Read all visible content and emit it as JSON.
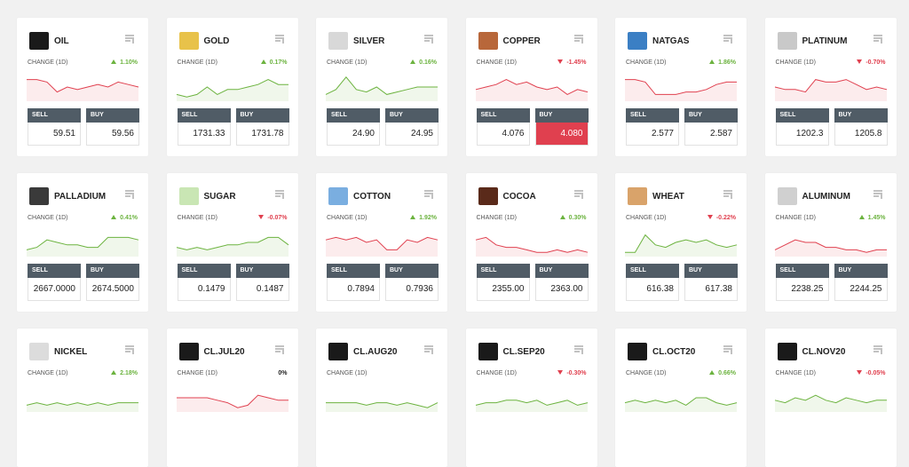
{
  "labels": {
    "change": "CHANGE (1D)",
    "sell": "SELL",
    "buy": "BUY"
  },
  "cards": [
    {
      "name": "OIL",
      "icon_color": "#1a1a1a",
      "change": "1.10%",
      "dir": "up",
      "trend": "down",
      "sell": "59.51",
      "buy": "59.56",
      "spark": [
        8,
        8,
        7,
        3,
        5,
        4,
        5,
        6,
        5,
        7,
        6,
        5
      ]
    },
    {
      "name": "GOLD",
      "icon_color": "#e8c24a",
      "change": "0.17%",
      "dir": "up",
      "trend": "up",
      "sell": "1731.33",
      "buy": "1731.78",
      "spark": [
        2,
        1,
        2,
        5,
        2,
        4,
        4,
        5,
        6,
        8,
        6,
        6
      ]
    },
    {
      "name": "SILVER",
      "icon_color": "#d8d8d8",
      "change": "0.16%",
      "dir": "up",
      "trend": "up",
      "sell": "24.90",
      "buy": "24.95",
      "spark": [
        2,
        4,
        9,
        4,
        3,
        5,
        2,
        3,
        4,
        5,
        5,
        5
      ]
    },
    {
      "name": "COPPER",
      "icon_color": "#b8673a",
      "change": "-1.45%",
      "dir": "down",
      "trend": "down",
      "sell": "4.076",
      "buy": "4.080",
      "highlight": "buy",
      "spark": [
        4,
        5,
        6,
        8,
        6,
        7,
        5,
        4,
        5,
        2,
        4,
        3
      ]
    },
    {
      "name": "NATGAS",
      "icon_color": "#3b7fc4",
      "change": "1.86%",
      "dir": "up",
      "trend": "down",
      "sell": "2.577",
      "buy": "2.587",
      "spark": [
        8,
        8,
        7,
        2,
        2,
        2,
        3,
        3,
        4,
        6,
        7,
        7
      ]
    },
    {
      "name": "PLATINUM",
      "icon_color": "#c9c9c9",
      "change": "-0.70%",
      "dir": "down",
      "trend": "down",
      "sell": "1202.3",
      "buy": "1205.8",
      "spark": [
        5,
        4,
        4,
        3,
        8,
        7,
        7,
        8,
        6,
        4,
        5,
        4
      ]
    },
    {
      "name": "PALLADIUM",
      "icon_color": "#3a3a3a",
      "change": "0.41%",
      "dir": "up",
      "trend": "up",
      "sell": "2667.0000",
      "buy": "2674.5000",
      "spark": [
        2,
        3,
        6,
        5,
        4,
        4,
        3,
        3,
        7,
        7,
        7,
        6
      ]
    },
    {
      "name": "SUGAR",
      "icon_color": "#c9e6b4",
      "change": "-0.07%",
      "dir": "down",
      "trend": "up",
      "sell": "0.1479",
      "buy": "0.1487",
      "spark": [
        3,
        2,
        3,
        2,
        3,
        4,
        4,
        5,
        5,
        7,
        7,
        4
      ]
    },
    {
      "name": "COTTON",
      "icon_color": "#7aaee0",
      "change": "1.92%",
      "dir": "up",
      "trend": "down",
      "sell": "0.7894",
      "buy": "0.7936",
      "spark": [
        6,
        7,
        6,
        7,
        5,
        6,
        2,
        2,
        6,
        5,
        7,
        6
      ]
    },
    {
      "name": "COCOA",
      "icon_color": "#5a2a1a",
      "change": "0.30%",
      "dir": "up",
      "trend": "down",
      "sell": "2355.00",
      "buy": "2363.00",
      "spark": [
        6,
        7,
        4,
        3,
        3,
        2,
        1,
        1,
        2,
        1,
        2,
        1
      ]
    },
    {
      "name": "WHEAT",
      "icon_color": "#d9a36a",
      "change": "-0.22%",
      "dir": "down",
      "trend": "up",
      "sell": "616.38",
      "buy": "617.38",
      "spark": [
        1,
        1,
        8,
        4,
        3,
        5,
        6,
        5,
        6,
        4,
        3,
        4
      ]
    },
    {
      "name": "ALUMINUM",
      "icon_color": "#d0d0d0",
      "change": "1.45%",
      "dir": "up",
      "trend": "down",
      "sell": "2238.25",
      "buy": "2244.25",
      "spark": [
        2,
        4,
        6,
        5,
        5,
        3,
        3,
        2,
        2,
        1,
        2,
        2
      ]
    },
    {
      "name": "NICKEL",
      "icon_color": "#dcdcdc",
      "change": "2.18%",
      "dir": "up",
      "trend": "up",
      "spark": [
        2,
        3,
        2,
        3,
        2,
        3,
        2,
        3,
        2,
        3,
        3,
        3
      ]
    },
    {
      "name": "CL.JUL20",
      "icon_color": "#1a1a1a",
      "change": "0%",
      "dir": "flat",
      "trend": "down",
      "spark": [
        5,
        5,
        5,
        5,
        4,
        3,
        1,
        2,
        6,
        5,
        4,
        4
      ]
    },
    {
      "name": "CL.AUG20",
      "icon_color": "#1a1a1a",
      "trend": "up",
      "spark": [
        3,
        3,
        3,
        3,
        2,
        3,
        3,
        2,
        3,
        2,
        1,
        3
      ]
    },
    {
      "name": "CL.SEP20",
      "icon_color": "#1a1a1a",
      "change": "-0.30%",
      "dir": "down",
      "trend": "up",
      "spark": [
        2,
        3,
        3,
        4,
        4,
        3,
        4,
        2,
        3,
        4,
        2,
        3
      ]
    },
    {
      "name": "CL.OCT20",
      "icon_color": "#1a1a1a",
      "change": "0.66%",
      "dir": "up",
      "trend": "up",
      "spark": [
        3,
        4,
        3,
        4,
        3,
        4,
        2,
        5,
        5,
        3,
        2,
        3
      ]
    },
    {
      "name": "CL.NOV20",
      "icon_color": "#1a1a1a",
      "change": "-0.05%",
      "dir": "down",
      "trend": "up",
      "spark": [
        4,
        3,
        5,
        4,
        6,
        4,
        3,
        5,
        4,
        3,
        4,
        4
      ]
    }
  ]
}
